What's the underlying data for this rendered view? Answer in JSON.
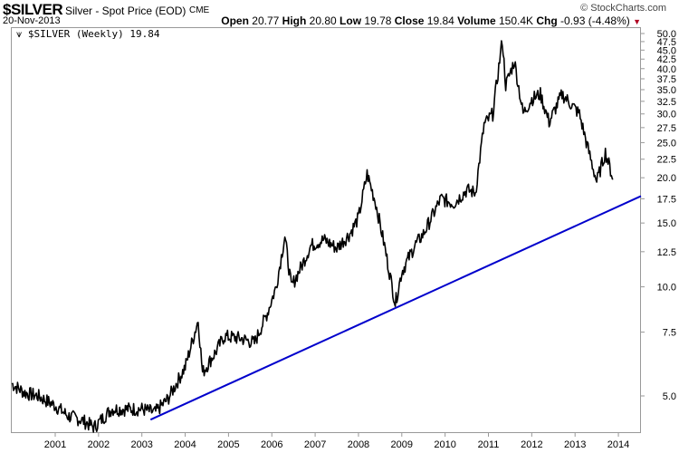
{
  "header": {
    "symbol": "$SILVER",
    "description": "Silver - Spot Price (EOD)",
    "exchange": "CME",
    "brand": "© StockCharts.com",
    "date": "20-Nov-2013",
    "open_label": "Open",
    "open": "20.77",
    "high_label": "High",
    "high": "20.80",
    "low_label": "Low",
    "low": "19.78",
    "close_label": "Close",
    "close": "19.84",
    "volume_label": "Volume",
    "volume": "150.4K",
    "chg_label": "Chg",
    "chg": "-0.93 (-4.48%)",
    "chg_icon": "down-triangle-icon"
  },
  "legend": {
    "icon": "line-chart-icon",
    "label": "$SILVER (Weekly) 19.84"
  },
  "colors": {
    "price": "#000000",
    "trendline": "#0000cc",
    "down": "#b00020"
  },
  "chart_data": {
    "type": "line",
    "title": "$SILVER Silver - Spot Price (EOD)",
    "yscale": "log",
    "ylim": [
      4.0,
      50.5
    ],
    "xlim": [
      2000.0,
      2014.5
    ],
    "yticks": [
      "5.0",
      "7.5",
      "10.0",
      "12.5",
      "15.0",
      "17.5",
      "20.0",
      "22.5",
      "25.0",
      "27.5",
      "30.0",
      "32.5",
      "35.0",
      "37.5",
      "40.0",
      "42.5",
      "45.0",
      "47.5",
      "50.0"
    ],
    "xticks": [
      "2001",
      "2002",
      "2003",
      "2004",
      "2005",
      "2006",
      "2007",
      "2008",
      "2009",
      "2010",
      "2011",
      "2012",
      "2013",
      "2014"
    ],
    "series": [
      {
        "name": "$SILVER (Weekly)",
        "points": [
          [
            2000.0,
            5.4
          ],
          [
            2000.3,
            5.1
          ],
          [
            2000.6,
            5.0
          ],
          [
            2001.0,
            4.7
          ],
          [
            2001.3,
            4.4
          ],
          [
            2001.6,
            4.3
          ],
          [
            2001.9,
            4.1
          ],
          [
            2002.3,
            4.6
          ],
          [
            2002.6,
            4.6
          ],
          [
            2003.0,
            4.6
          ],
          [
            2003.3,
            4.5
          ],
          [
            2003.6,
            4.9
          ],
          [
            2004.0,
            6.0
          ],
          [
            2004.3,
            8.1
          ],
          [
            2004.4,
            5.8
          ],
          [
            2004.7,
            6.6
          ],
          [
            2004.9,
            7.3
          ],
          [
            2005.3,
            7.2
          ],
          [
            2005.6,
            7.0
          ],
          [
            2005.9,
            8.5
          ],
          [
            2006.1,
            10
          ],
          [
            2006.3,
            13.8
          ],
          [
            2006.45,
            10
          ],
          [
            2006.7,
            11.5
          ],
          [
            2006.9,
            13.0
          ],
          [
            2007.2,
            13.5
          ],
          [
            2007.5,
            12.8
          ],
          [
            2007.8,
            14.0
          ],
          [
            2008.0,
            15.5
          ],
          [
            2008.2,
            20.5
          ],
          [
            2008.4,
            17
          ],
          [
            2008.6,
            13
          ],
          [
            2008.85,
            9.0
          ],
          [
            2009.0,
            11
          ],
          [
            2009.3,
            13
          ],
          [
            2009.5,
            14
          ],
          [
            2009.9,
            17.5
          ],
          [
            2010.2,
            17
          ],
          [
            2010.5,
            18.5
          ],
          [
            2010.7,
            18.2
          ],
          [
            2010.9,
            28
          ],
          [
            2011.1,
            30
          ],
          [
            2011.32,
            48
          ],
          [
            2011.4,
            36
          ],
          [
            2011.6,
            42
          ],
          [
            2011.8,
            30
          ],
          [
            2012.0,
            33
          ],
          [
            2012.2,
            34
          ],
          [
            2012.4,
            28.5
          ],
          [
            2012.7,
            34
          ],
          [
            2012.9,
            32
          ],
          [
            2013.1,
            30
          ],
          [
            2013.3,
            24
          ],
          [
            2013.5,
            19.5
          ],
          [
            2013.7,
            23.5
          ],
          [
            2013.88,
            19.84
          ]
        ]
      },
      {
        "name": "Trendline",
        "points": [
          [
            2003.2,
            4.3
          ],
          [
            2014.5,
            17.8
          ]
        ]
      }
    ]
  }
}
